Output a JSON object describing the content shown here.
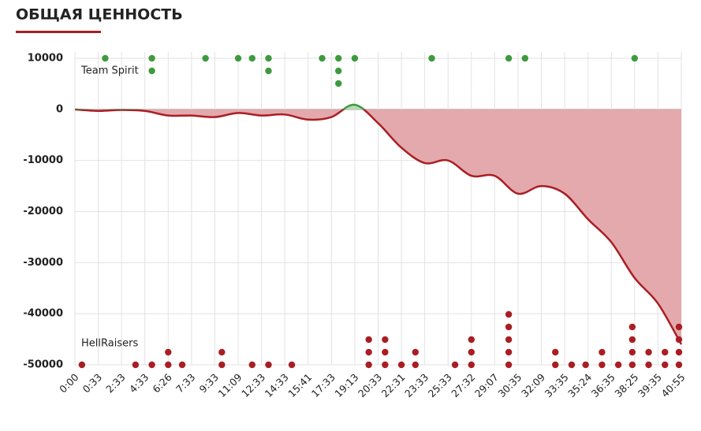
{
  "chart_data": {
    "type": "line",
    "title": "ОБЩАЯ ЦЕННОСТЬ",
    "categories": [
      "0:00",
      "0:33",
      "2:33",
      "4:33",
      "6:26",
      "7:33",
      "9:33",
      "11:09",
      "12:33",
      "14:33",
      "15:41",
      "17:33",
      "19:13",
      "20:33",
      "22:31",
      "23:33",
      "25:33",
      "27:32",
      "29:07",
      "30:35",
      "32:09",
      "33:35",
      "35:24",
      "36:35",
      "38:25",
      "39:35",
      "40:55"
    ],
    "values": [
      0,
      -300,
      -100,
      -300,
      -1200,
      -1200,
      -1500,
      -700,
      -1200,
      -1000,
      -2000,
      -1500,
      900,
      -2700,
      -7500,
      -10500,
      -10000,
      -13000,
      -13000,
      -16500,
      -15000,
      -16500,
      -21500,
      -26000,
      -33000,
      -38000,
      -46000
    ],
    "line_color_positive": "#3f9a3f",
    "area_color_positive": "#b7dab3",
    "line_color_negative": "#a91e23",
    "area_color_negative": "#e3a9ac",
    "ylim": [
      -50000,
      10000
    ],
    "yticks": [
      -50000,
      -40000,
      -30000,
      -20000,
      -10000,
      0,
      10000
    ],
    "grid": true,
    "teams": [
      {
        "name": "Team Spirit",
        "color": "#3f9a3f",
        "kill_x": [
          1.3,
          3.3,
          5.6,
          7.0,
          7.6,
          8.3,
          10.6,
          11.3,
          12.0,
          15.3,
          18.6,
          19.3,
          24.0
        ],
        "kill_counts": [
          1,
          2,
          1,
          1,
          1,
          2,
          1,
          3,
          1,
          1,
          1,
          1,
          1
        ]
      },
      {
        "name": "HellRaisers",
        "color": "#a91e23",
        "kill_x": [
          0.3,
          2.6,
          3.3,
          4.0,
          4.6,
          6.3,
          7.6,
          8.3,
          9.3,
          12.6,
          13.3,
          14.0,
          14.6,
          16.3,
          17.0,
          18.6,
          20.6,
          21.3,
          21.9,
          22.6,
          23.3,
          23.9,
          24.6,
          25.3,
          25.9
        ],
        "kill_counts": [
          1,
          1,
          1,
          2,
          1,
          2,
          1,
          1,
          1,
          3,
          3,
          1,
          2,
          1,
          3,
          5,
          2,
          1,
          1,
          2,
          1,
          4,
          2,
          2,
          4
        ]
      }
    ]
  }
}
